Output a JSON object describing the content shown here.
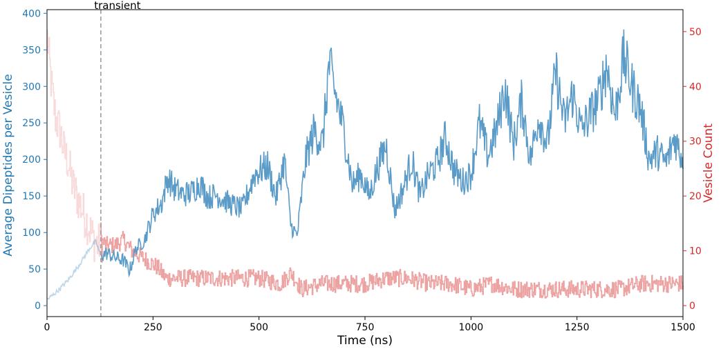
{
  "chart_data": {
    "type": "line",
    "title": "",
    "xlabel": "Time (ns)",
    "ylabel_left": "Average Dipeptides per Vesicle",
    "ylabel_right": "Vesicle Count",
    "xlim": [
      0,
      1500
    ],
    "ylim_left": [
      -15,
      405
    ],
    "ylim_right": [
      -2,
      54
    ],
    "xticks": [
      0,
      250,
      500,
      750,
      1000,
      1250,
      1500
    ],
    "yticks_left": [
      0,
      50,
      100,
      150,
      200,
      250,
      300,
      350,
      400
    ],
    "yticks_right": [
      0,
      10,
      20,
      30,
      40,
      50
    ],
    "grid": false,
    "colors": {
      "left_axis": "#1f77b4",
      "right_axis": "#d62728",
      "blue_line": "#5b9bc8",
      "red_line": "#eda2a2",
      "transient_line": "#9e9e9e"
    },
    "annotation": {
      "label": "transient",
      "x": 127
    },
    "series": [
      {
        "axis": "left",
        "color": "#5b9bc8",
        "x": [
          0,
          25,
          50,
          75,
          100,
          115,
          127,
          140,
          160,
          180,
          195,
          210,
          230,
          250,
          270,
          285,
          300,
          320,
          340,
          360,
          380,
          400,
          430,
          460,
          490,
          520,
          540,
          560,
          575,
          590,
          610,
          630,
          650,
          665,
          680,
          700,
          720,
          740,
          760,
          780,
          800,
          820,
          840,
          860,
          880,
          900,
          920,
          940,
          960,
          980,
          1000,
          1020,
          1040,
          1060,
          1080,
          1100,
          1120,
          1140,
          1160,
          1180,
          1200,
          1220,
          1240,
          1260,
          1280,
          1300,
          1320,
          1340,
          1360,
          1380,
          1400,
          1420,
          1440,
          1460,
          1480,
          1500
        ],
        "y": [
          8,
          20,
          35,
          55,
          78,
          88,
          68,
          72,
          66,
          62,
          48,
          78,
          90,
          125,
          140,
          175,
          160,
          152,
          155,
          168,
          148,
          152,
          140,
          132,
          180,
          192,
          148,
          200,
          110,
          95,
          200,
          240,
          220,
          330,
          290,
          240,
          165,
          180,
          150,
          190,
          220,
          130,
          160,
          200,
          150,
          180,
          195,
          230,
          185,
          170,
          180,
          250,
          205,
          240,
          300,
          220,
          280,
          200,
          260,
          220,
          320,
          250,
          290,
          240,
          260,
          280,
          330,
          260,
          340,
          300,
          270,
          200,
          210,
          195,
          230,
          200
        ],
        "sampled_span_ns": [
          127,
          1500
        ]
      },
      {
        "axis": "right",
        "color": "#eda2a2",
        "x": [
          0,
          10,
          20,
          30,
          40,
          50,
          60,
          70,
          80,
          90,
          100,
          110,
          120,
          127,
          140,
          160,
          180,
          200,
          220,
          240,
          260,
          280,
          300,
          350,
          400,
          450,
          500,
          550,
          575,
          600,
          650,
          700,
          750,
          800,
          850,
          900,
          950,
          1000,
          1050,
          1100,
          1150,
          1200,
          1250,
          1300,
          1350,
          1400,
          1450,
          1500
        ],
        "y": [
          49,
          40,
          34,
          32,
          28,
          26,
          22,
          20,
          18,
          16,
          14,
          12,
          11,
          12,
          11,
          11,
          12,
          10,
          9,
          8,
          7,
          5,
          5,
          5,
          5,
          5,
          5,
          4,
          6,
          3,
          4,
          4,
          4,
          5,
          5,
          4,
          4,
          3,
          4,
          3,
          3,
          3,
          3,
          3,
          3,
          4,
          4,
          4
        ],
        "sampled_span_ns": [
          127,
          1500
        ]
      }
    ]
  }
}
